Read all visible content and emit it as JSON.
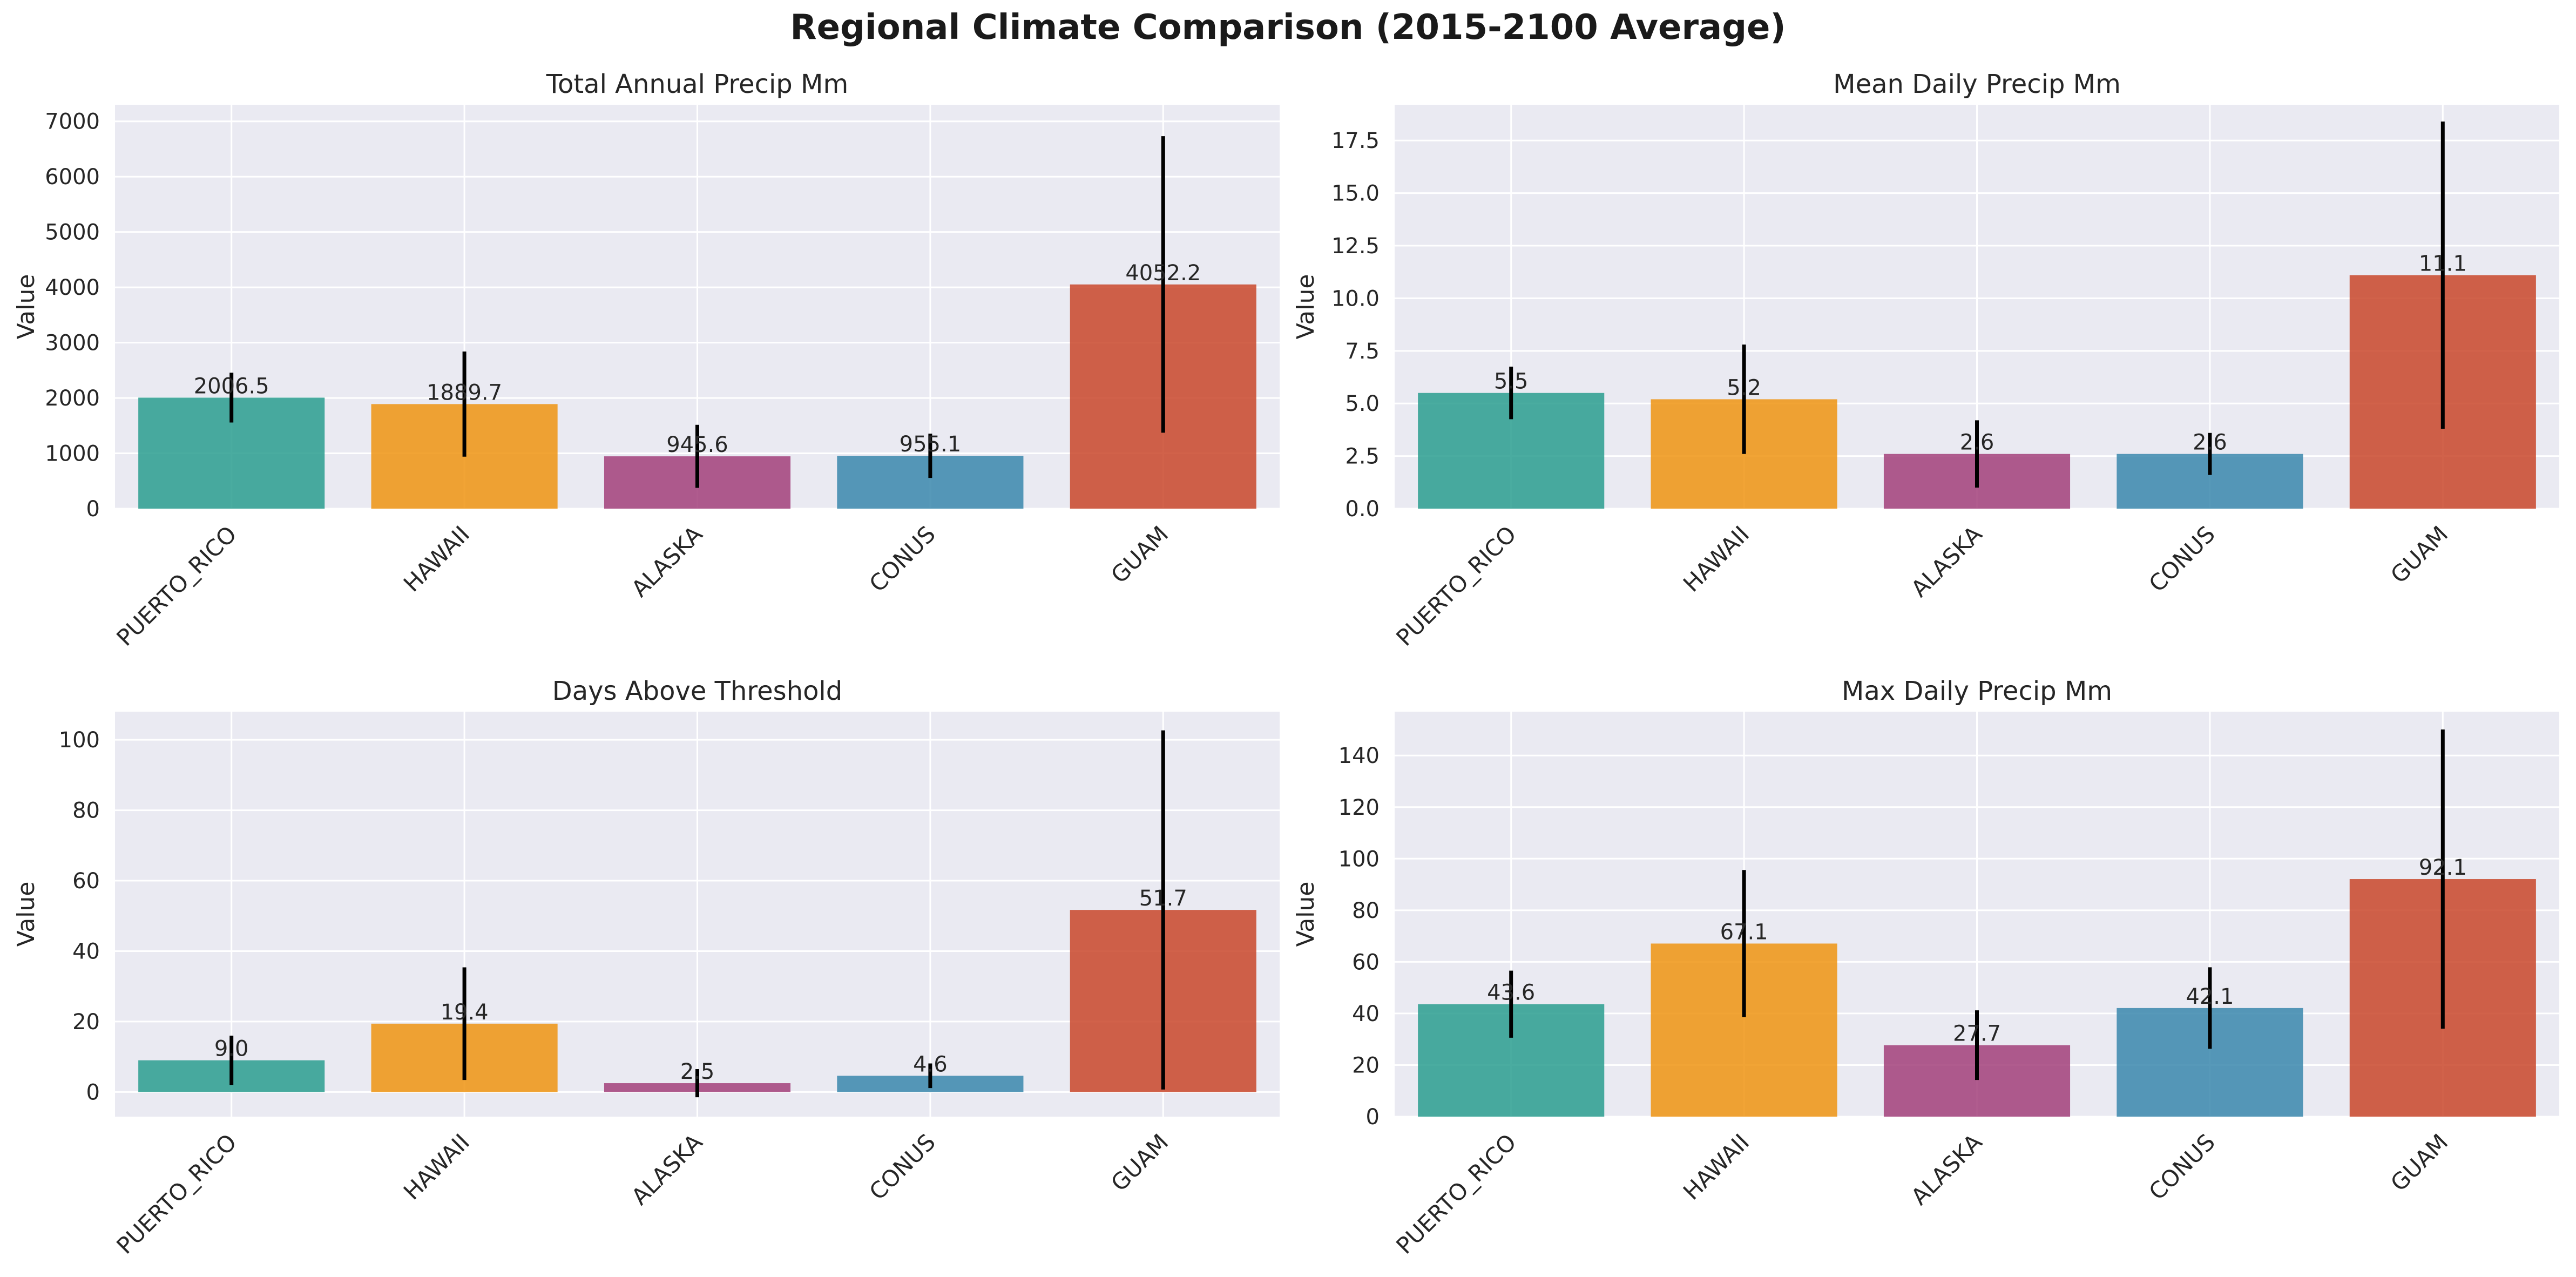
{
  "figure_title": "Regional Climate Comparison (2015-2100 Average)",
  "colors": {
    "PUERTO_RICO": "#2a9d8f",
    "HAWAII": "#ee9412",
    "ALASKA": "#a2407a",
    "CONUS": "#3a87ad",
    "GUAM": "#c9472a",
    "panel_bg": "#eaeaf2",
    "grid": "#ffffff",
    "errorbar": "#000000"
  },
  "chart_data": [
    {
      "type": "bar",
      "title": "Total Annual Precip Mm",
      "ylabel": "Value",
      "xlabel": "",
      "categories": [
        "PUERTO_RICO",
        "HAWAII",
        "ALASKA",
        "CONUS",
        "GUAM"
      ],
      "values": [
        2006.5,
        1889.7,
        945.6,
        955.1,
        4052.2
      ],
      "value_labels": [
        "2006.5",
        "1889.7",
        "945.6",
        "955.1",
        "4052.2"
      ],
      "errors": [
        450,
        950,
        570,
        400,
        2680
      ],
      "ylim": [
        0,
        7300
      ],
      "yticks": [
        0,
        1000,
        2000,
        3000,
        4000,
        5000,
        6000,
        7000
      ],
      "ytick_labels": [
        "0",
        "1000",
        "2000",
        "3000",
        "4000",
        "5000",
        "6000",
        "7000"
      ],
      "grid": true
    },
    {
      "type": "bar",
      "title": "Mean Daily Precip Mm",
      "ylabel": "Value",
      "xlabel": "",
      "categories": [
        "PUERTO_RICO",
        "HAWAII",
        "ALASKA",
        "CONUS",
        "GUAM"
      ],
      "values": [
        5.5,
        5.2,
        2.6,
        2.6,
        11.1
      ],
      "value_labels": [
        "5.5",
        "5.2",
        "2.6",
        "2.6",
        "11.1"
      ],
      "errors": [
        1.25,
        2.6,
        1.6,
        1.0,
        7.3
      ],
      "ylim": [
        0,
        19.2
      ],
      "yticks": [
        0,
        2.5,
        5,
        7.5,
        10,
        12.5,
        15,
        17.5
      ],
      "ytick_labels": [
        "0.0",
        "2.5",
        "5.0",
        "7.5",
        "10.0",
        "12.5",
        "15.0",
        "17.5"
      ],
      "grid": true
    },
    {
      "type": "bar",
      "title": "Days Above Threshold",
      "ylabel": "Value",
      "xlabel": "",
      "categories": [
        "PUERTO_RICO",
        "HAWAII",
        "ALASKA",
        "CONUS",
        "GUAM"
      ],
      "values": [
        9.0,
        19.4,
        2.5,
        4.6,
        51.7
      ],
      "value_labels": [
        "9.0",
        "19.4",
        "2.5",
        "4.6",
        "51.7"
      ],
      "errors": [
        7.0,
        16.0,
        4.0,
        3.5,
        51.0
      ],
      "ylim": [
        -7,
        108
      ],
      "yticks": [
        0,
        20,
        40,
        60,
        80,
        100
      ],
      "ytick_labels": [
        "0",
        "20",
        "40",
        "60",
        "80",
        "100"
      ],
      "grid": true
    },
    {
      "type": "bar",
      "title": "Max Daily Precip Mm",
      "ylabel": "Value",
      "xlabel": "",
      "categories": [
        "PUERTO_RICO",
        "HAWAII",
        "ALASKA",
        "CONUS",
        "GUAM"
      ],
      "values": [
        43.6,
        67.1,
        27.7,
        42.1,
        92.1
      ],
      "value_labels": [
        "43.6",
        "67.1",
        "27.7",
        "42.1",
        "92.1"
      ],
      "errors": [
        13.0,
        28.5,
        13.5,
        15.8,
        58.0
      ],
      "ylim": [
        0,
        157
      ],
      "yticks": [
        0,
        20,
        40,
        60,
        80,
        100,
        120,
        140
      ],
      "ytick_labels": [
        "0",
        "20",
        "40",
        "60",
        "80",
        "100",
        "120",
        "140"
      ],
      "grid": true
    }
  ]
}
